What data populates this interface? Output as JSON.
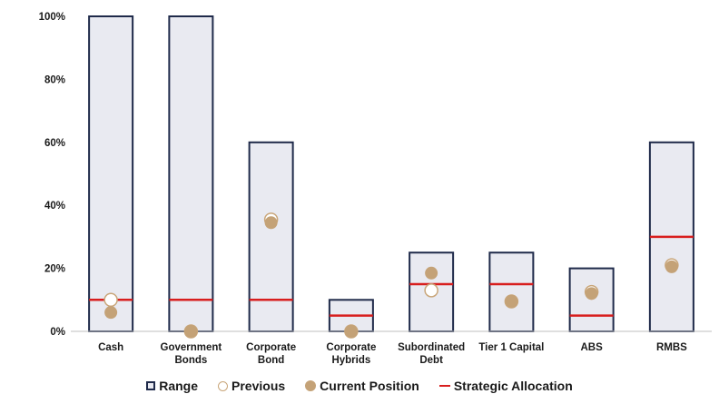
{
  "chart_data": {
    "type": "bar",
    "categories": [
      "Cash",
      "Government Bonds",
      "Corporate Bond",
      "Corporate Hybrids",
      "Subordinated Debt",
      "Tier 1 Capital",
      "ABS",
      "RMBS"
    ],
    "category_lines": [
      [
        "Cash"
      ],
      [
        "Government",
        "Bonds"
      ],
      [
        "Corporate",
        "Bond"
      ],
      [
        "Corporate",
        "Hybrids"
      ],
      [
        "Subordinated",
        "Debt"
      ],
      [
        "Tier 1 Capital"
      ],
      [
        "ABS"
      ],
      [
        "RMBS"
      ]
    ],
    "ylim": [
      0,
      100
    ],
    "yticks": [
      0,
      20,
      40,
      60,
      80,
      100
    ],
    "ytick_labels": [
      "0%",
      "20%",
      "40%",
      "60%",
      "80%",
      "100%"
    ],
    "series": [
      {
        "name": "Range",
        "values": [
          100,
          100,
          60,
          10,
          25,
          25,
          20,
          60
        ]
      },
      {
        "name": "Previous",
        "values": [
          10,
          0,
          35.5,
          0,
          13,
          9.5,
          12.5,
          21
        ]
      },
      {
        "name": "Current Position",
        "values": [
          6,
          0,
          34.5,
          0,
          18.5,
          9.5,
          12,
          20.5
        ]
      },
      {
        "name": "Strategic Allocation",
        "values": [
          10,
          10,
          10,
          5,
          15,
          15,
          5,
          30
        ]
      }
    ],
    "legend": {
      "position": "bottom",
      "labels": [
        "Range",
        "Previous",
        "Current Position",
        "Strategic Allocation"
      ]
    },
    "colors": {
      "range_border": "#1f2a4a",
      "range_fill": "#e9eaf1",
      "previous": "#c9a67a",
      "current": "#c4a277",
      "strategic": "#d81e1e",
      "axis": "#bfbfbf"
    },
    "grid": false
  }
}
